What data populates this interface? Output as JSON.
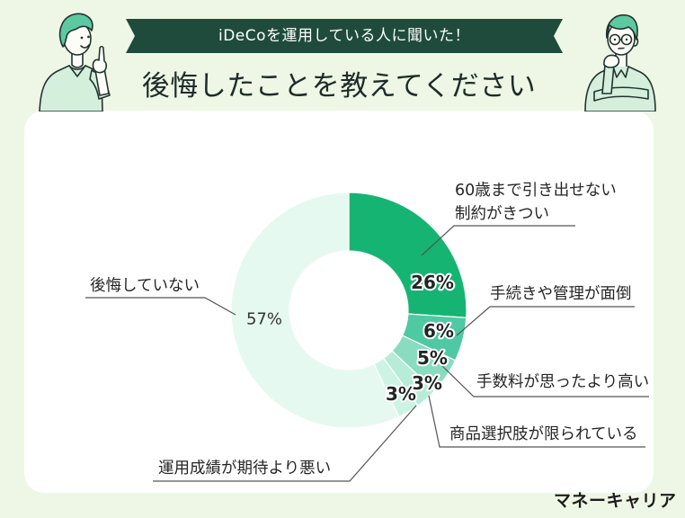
{
  "banner": {
    "text": "iDeCoを運用している人に聞いた！"
  },
  "title": "後悔したことを教えてください",
  "brand": {
    "logo_text": "マネーキャリア"
  },
  "illustrations": {
    "left": "person-pointing-icon",
    "right": "person-thinking-icon"
  },
  "colors": {
    "page_background": "#eef7e5",
    "card_background": "#ffffff",
    "banner_background": "#1f4b3c",
    "text": "#1f2b28",
    "leader_line": "#555555",
    "shirt": "#d4efdc",
    "hair": "#5cc9a0"
  },
  "chart_data": {
    "type": "pie",
    "donut": true,
    "categories": [
      "60歳まで引き出せない\n制約がきつい",
      "手続きや管理が面倒",
      "手数料が思ったより高い",
      "商品選択肢が限られている",
      "運用成績が期待より悪い",
      "後悔していない"
    ],
    "values": [
      26,
      6,
      5,
      3,
      3,
      57
    ],
    "value_labels": [
      "26%",
      "6%",
      "5%",
      "3%",
      "3%",
      "57%"
    ],
    "colors": [
      "#16b473",
      "#4ec9a2",
      "#8adcc0",
      "#b6ecd8",
      "#cdf3e5",
      "#e5f9f1"
    ]
  }
}
